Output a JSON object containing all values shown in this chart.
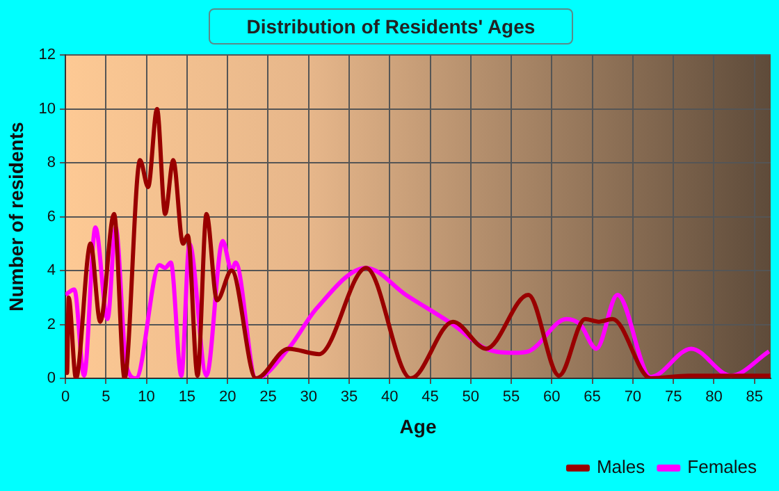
{
  "chart_data": {
    "type": "line",
    "title": "Distribution of Residents' Ages",
    "xlabel": "Age",
    "ylabel": "Number of residents",
    "xlim": [
      0,
      87
    ],
    "xticks": [
      0,
      5,
      10,
      15,
      20,
      25,
      30,
      35,
      40,
      45,
      50,
      55,
      60,
      65,
      70,
      75,
      80,
      85
    ],
    "ylim": [
      0,
      12
    ],
    "yticks": [
      0,
      2,
      4,
      6,
      8,
      10,
      12
    ],
    "grid": true,
    "legend": "bottom right",
    "marker": "none",
    "line_style": "solid",
    "series": [
      {
        "name": "Males",
        "color": "#990000",
        "x": [
          0,
          0.2,
          0.4,
          1.3,
          3.1,
          4.3,
          6,
          7.3,
          9.2,
          10.2,
          11.3,
          12.3,
          13.3,
          14.5,
          15.1,
          16.3,
          17.4,
          18.7,
          20.5,
          23.5,
          27.5,
          31.3,
          37.1,
          42.6,
          47.8,
          51.9,
          57.1,
          60.9,
          64.1,
          65.8,
          67.5,
          72.2,
          76.9,
          87
        ],
        "values": [
          2,
          0.2,
          3,
          0,
          5,
          2.1,
          6.1,
          0,
          8.1,
          7.1,
          10,
          6.1,
          8.1,
          5,
          5.3,
          0.1,
          6.1,
          2.9,
          4,
          0,
          1.1,
          0.9,
          4.1,
          0,
          2.1,
          1.1,
          3.1,
          0.1,
          2.2,
          2.1,
          2.2,
          0,
          0.1,
          0.1
        ]
      },
      {
        "name": "Females",
        "color": "#ff00ff",
        "x": [
          0,
          1.1,
          2.3,
          3.7,
          5.2,
          6.2,
          7.5,
          8.7,
          11.6,
          12.3,
          13,
          14.3,
          15.3,
          17.4,
          19.4,
          20.5,
          21,
          23.5,
          27.5,
          31,
          37.1,
          42,
          47.8,
          51.9,
          55.4,
          57.1,
          61.8,
          63.5,
          65.5,
          68.1,
          72.2,
          77.2,
          82.1,
          86.8
        ],
        "values": [
          3.1,
          3.3,
          0.1,
          5.6,
          2.2,
          5.6,
          0.5,
          0,
          4.2,
          4.1,
          4.3,
          0.1,
          5,
          0.1,
          5.1,
          4,
          4.3,
          0,
          1.1,
          2.6,
          4.1,
          3.1,
          2,
          1.1,
          0.95,
          1,
          2.2,
          2,
          1.1,
          3.1,
          0.05,
          1.1,
          0.1,
          1
        ]
      }
    ]
  }
}
